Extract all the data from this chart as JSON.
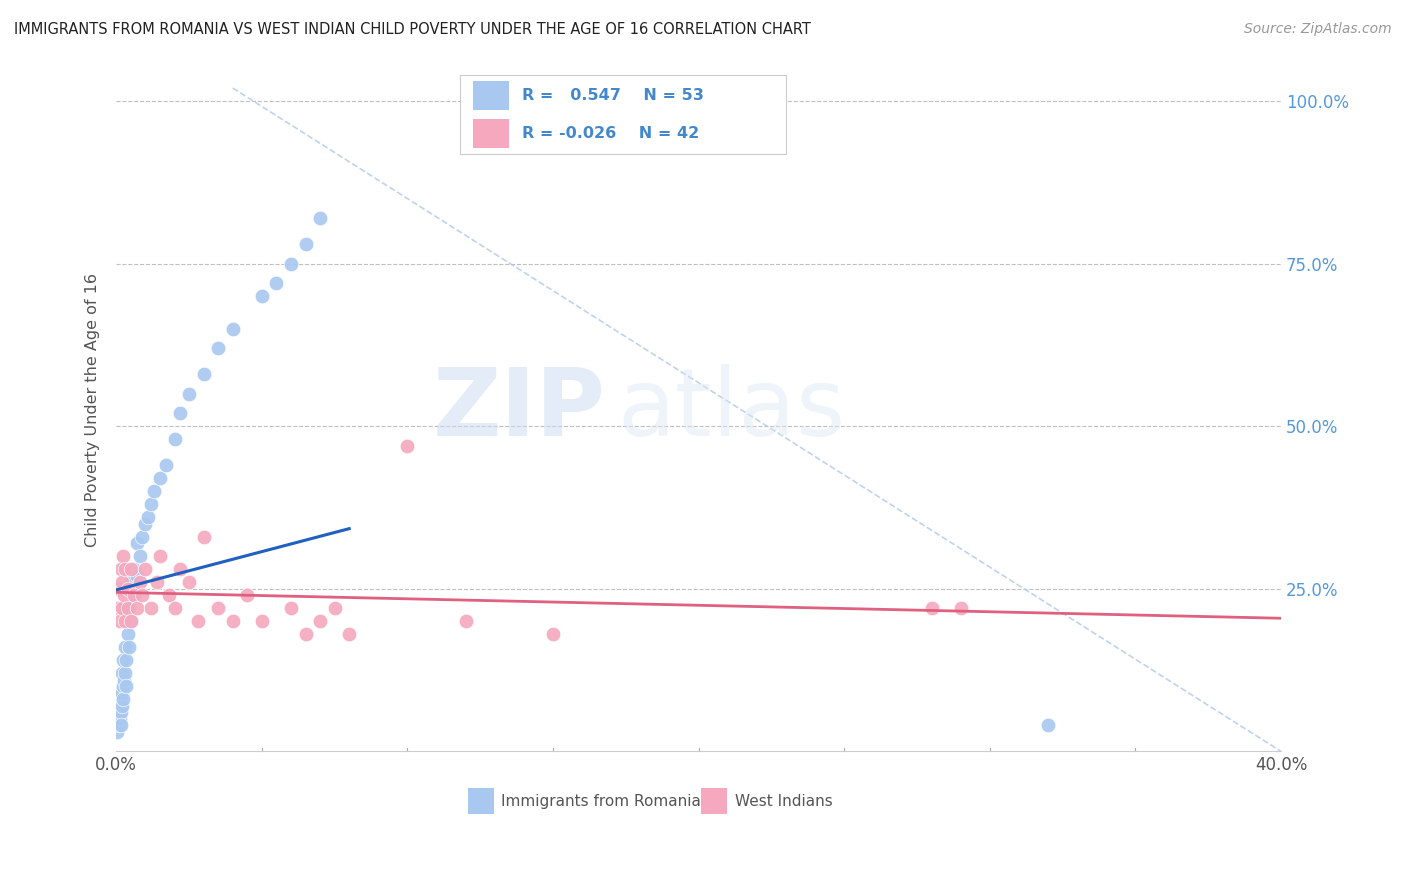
{
  "title": "IMMIGRANTS FROM ROMANIA VS WEST INDIAN CHILD POVERTY UNDER THE AGE OF 16 CORRELATION CHART",
  "source": "Source: ZipAtlas.com",
  "ylabel": "Child Poverty Under the Age of 16",
  "xlim": [
    0.0,
    0.4
  ],
  "ylim": [
    0.0,
    1.05
  ],
  "R_romania": 0.547,
  "N_romania": 53,
  "R_west_indian": -0.026,
  "N_west_indian": 42,
  "romania_color": "#a8c8f0",
  "romania_line_color": "#2060c0",
  "west_indian_color": "#f5a8be",
  "west_indian_line_color": "#e06080",
  "watermark_zip": "ZIP",
  "watermark_atlas": "atlas",
  "legend_label_romania": "Immigrants from Romania",
  "legend_label_west_indian": "West Indians",
  "background_color": "#ffffff",
  "grid_color": "#c0c0c0",
  "romania_x": [
    0.0004,
    0.0006,
    0.0007,
    0.0008,
    0.0009,
    0.001,
    0.001,
    0.0012,
    0.0013,
    0.0014,
    0.0015,
    0.0016,
    0.0017,
    0.0018,
    0.002,
    0.002,
    0.0022,
    0.0023,
    0.0024,
    0.0025,
    0.003,
    0.003,
    0.0032,
    0.0034,
    0.004,
    0.004,
    0.0042,
    0.005,
    0.005,
    0.006,
    0.006,
    0.007,
    0.007,
    0.008,
    0.009,
    0.01,
    0.011,
    0.012,
    0.013,
    0.015,
    0.017,
    0.02,
    0.022,
    0.025,
    0.03,
    0.035,
    0.04,
    0.05,
    0.055,
    0.06,
    0.065,
    0.07,
    0.32
  ],
  "romania_y": [
    0.03,
    0.05,
    0.06,
    0.04,
    0.08,
    0.05,
    0.09,
    0.06,
    0.07,
    0.05,
    0.06,
    0.08,
    0.04,
    0.07,
    0.09,
    0.12,
    0.1,
    0.08,
    0.14,
    0.11,
    0.12,
    0.16,
    0.1,
    0.14,
    0.18,
    0.22,
    0.16,
    0.2,
    0.26,
    0.24,
    0.28,
    0.27,
    0.32,
    0.3,
    0.33,
    0.35,
    0.36,
    0.38,
    0.4,
    0.42,
    0.44,
    0.48,
    0.52,
    0.55,
    0.58,
    0.62,
    0.65,
    0.7,
    0.72,
    0.75,
    0.78,
    0.82,
    0.04
  ],
  "west_indian_x": [
    0.0005,
    0.001,
    0.0012,
    0.0015,
    0.0018,
    0.002,
    0.0022,
    0.0025,
    0.003,
    0.003,
    0.004,
    0.004,
    0.005,
    0.005,
    0.006,
    0.007,
    0.008,
    0.009,
    0.01,
    0.012,
    0.014,
    0.015,
    0.018,
    0.02,
    0.022,
    0.025,
    0.028,
    0.03,
    0.035,
    0.04,
    0.045,
    0.05,
    0.06,
    0.065,
    0.07,
    0.075,
    0.08,
    0.1,
    0.12,
    0.15,
    0.28,
    0.29
  ],
  "west_indian_y": [
    0.22,
    0.25,
    0.2,
    0.28,
    0.22,
    0.26,
    0.3,
    0.24,
    0.2,
    0.28,
    0.25,
    0.22,
    0.28,
    0.2,
    0.24,
    0.22,
    0.26,
    0.24,
    0.28,
    0.22,
    0.26,
    0.3,
    0.24,
    0.22,
    0.28,
    0.26,
    0.2,
    0.33,
    0.22,
    0.2,
    0.24,
    0.2,
    0.22,
    0.18,
    0.2,
    0.22,
    0.18,
    0.47,
    0.2,
    0.18,
    0.22,
    0.22
  ]
}
